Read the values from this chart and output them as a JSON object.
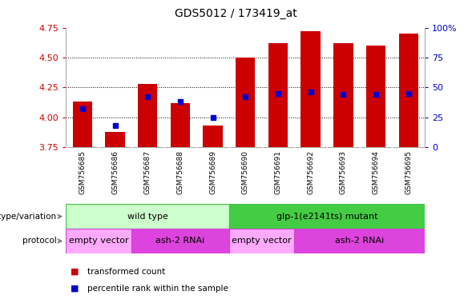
{
  "title": "GDS5012 / 173419_at",
  "samples": [
    "GSM756685",
    "GSM756686",
    "GSM756687",
    "GSM756688",
    "GSM756689",
    "GSM756690",
    "GSM756691",
    "GSM756692",
    "GSM756693",
    "GSM756694",
    "GSM756695"
  ],
  "transformed_counts": [
    4.13,
    3.88,
    4.28,
    4.12,
    3.93,
    4.5,
    4.62,
    4.72,
    4.62,
    4.6,
    4.7
  ],
  "percentile_ranks": [
    32,
    18,
    42,
    38,
    25,
    42,
    45,
    46,
    44,
    44,
    45
  ],
  "ylim_left": [
    3.75,
    4.75
  ],
  "ylim_right": [
    0,
    100
  ],
  "yticks_left": [
    3.75,
    4.0,
    4.25,
    4.5,
    4.75
  ],
  "yticks_right": [
    0,
    25,
    50,
    75,
    100
  ],
  "bar_color": "#cc0000",
  "marker_color": "#0000cc",
  "bar_width": 0.6,
  "genotype_groups": [
    {
      "label": "wild type",
      "start": 0,
      "end": 4,
      "color": "#ccffcc",
      "border_color": "#44bb44"
    },
    {
      "label": "glp-1(e2141ts) mutant",
      "start": 5,
      "end": 10,
      "color": "#44cc44",
      "border_color": "#44bb44"
    }
  ],
  "protocol_groups": [
    {
      "label": "empty vector",
      "start": 0,
      "end": 1,
      "color": "#ffaaff",
      "border_color": "#cc44cc"
    },
    {
      "label": "ash-2 RNAi",
      "start": 2,
      "end": 4,
      "color": "#dd44dd",
      "border_color": "#cc44cc"
    },
    {
      "label": "empty vector",
      "start": 5,
      "end": 6,
      "color": "#ffaaff",
      "border_color": "#cc44cc"
    },
    {
      "label": "ash-2 RNAi",
      "start": 7,
      "end": 10,
      "color": "#dd44dd",
      "border_color": "#cc44cc"
    }
  ],
  "legend_items": [
    {
      "label": "transformed count",
      "color": "#cc0000"
    },
    {
      "label": "percentile rank within the sample",
      "color": "#0000cc"
    }
  ],
  "bg_color": "#ffffff",
  "tick_label_color_left": "#cc0000",
  "tick_label_color_right": "#0000cc",
  "label_bg_color": "#cccccc",
  "label_divider_color": "#ffffff"
}
